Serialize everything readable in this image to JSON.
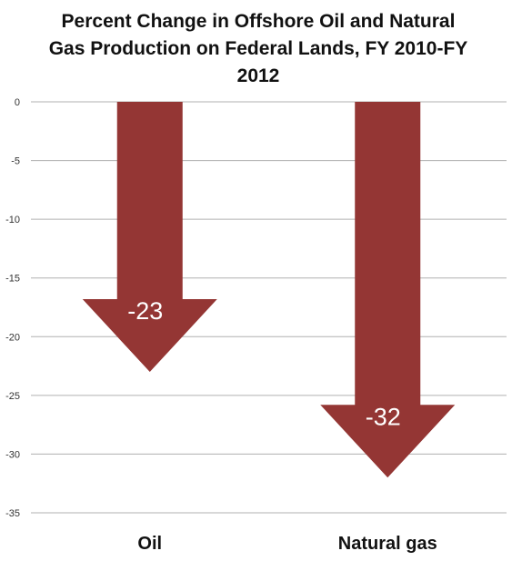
{
  "chart_data": {
    "type": "bar",
    "style": "downward-arrows",
    "title_lines": [
      "Percent Change in Offshore Oil and Natural",
      "Gas Production on Federal Lands, FY 2010-FY",
      "2012"
    ],
    "categories": [
      "Oil",
      "Natural gas"
    ],
    "values": [
      -23,
      -32
    ],
    "data_labels": [
      "-23",
      "-32"
    ],
    "ylim": [
      -35,
      0
    ],
    "yticks": [
      0,
      -5,
      -10,
      -15,
      -20,
      -25,
      -30,
      -35
    ],
    "grid": true,
    "legend": "none",
    "bar_color": "#943634",
    "grid_color": "#b0b0b0"
  }
}
